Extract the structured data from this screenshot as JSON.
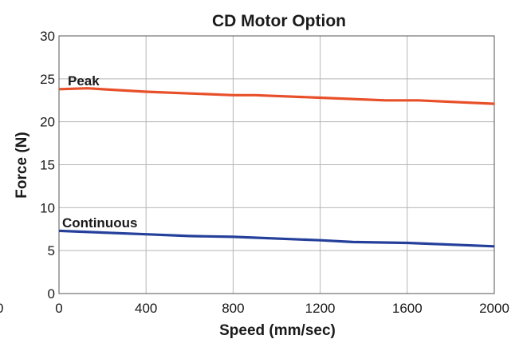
{
  "chart_data": {
    "type": "line",
    "title": "CD Motor Option",
    "xlabel": "Speed (mm/sec)",
    "ylabel": "Force (N)",
    "xlim": [
      0,
      2000
    ],
    "ylim": [
      0,
      30
    ],
    "xticks": [
      0,
      400,
      800,
      1200,
      1600,
      2000
    ],
    "yticks": [
      0,
      5,
      10,
      15,
      20,
      25,
      30
    ],
    "outside_tick_label": "0",
    "grid": true,
    "legend": "inline labels above lines",
    "series": [
      {
        "name": "Peak",
        "color": "#e8502a",
        "x": [
          0,
          130,
          400,
          800,
          900,
          1200,
          1500,
          1650,
          2000
        ],
        "y": [
          23.8,
          23.9,
          23.5,
          23.1,
          23.1,
          22.8,
          22.5,
          22.5,
          22.1
        ]
      },
      {
        "name": "Continuous",
        "color": "#24409a",
        "x": [
          0,
          400,
          600,
          800,
          1200,
          1350,
          1600,
          2000
        ],
        "y": [
          7.3,
          6.9,
          6.7,
          6.6,
          6.2,
          6.0,
          5.9,
          5.5
        ]
      }
    ]
  }
}
